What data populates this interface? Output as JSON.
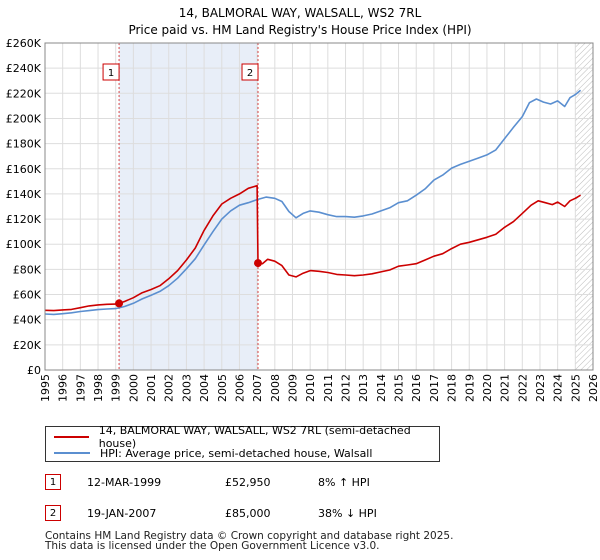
{
  "chart_data": {
    "type": "line",
    "title_line1": "14, BALMORAL WAY, WALSALL, WS2 7RL",
    "title_line2": "Price paid vs. HM Land Registry's House Price Index (HPI)",
    "x_ticks": [
      "1995",
      "1996",
      "1997",
      "1998",
      "1999",
      "2000",
      "2001",
      "2002",
      "2003",
      "2004",
      "2005",
      "2006",
      "2007",
      "2008",
      "2009",
      "2010",
      "2011",
      "2012",
      "2013",
      "2014",
      "2015",
      "2016",
      "2017",
      "2018",
      "2019",
      "2020",
      "2021",
      "2022",
      "2023",
      "2024",
      "2025",
      "2026"
    ],
    "y_ticks": [
      "£0",
      "£20K",
      "£40K",
      "£60K",
      "£80K",
      "£100K",
      "£120K",
      "£140K",
      "£160K",
      "£180K",
      "£200K",
      "£220K",
      "£240K",
      "£260K"
    ],
    "xlim": [
      1995,
      2026
    ],
    "ylim": [
      0,
      260000
    ],
    "colors": {
      "property": "#cc0000",
      "hpi": "#5b8fd0",
      "shade": "#e8eef8",
      "grid": "#dddddd"
    },
    "series": [
      {
        "name": "14, BALMORAL WAY, WALSALL, WS2 7RL (semi-detached house)",
        "points": [
          [
            1995.0,
            47500
          ],
          [
            1995.5,
            47200
          ],
          [
            1996.0,
            47800
          ],
          [
            1996.5,
            48200
          ],
          [
            1997.0,
            49500
          ],
          [
            1997.5,
            51000
          ],
          [
            1998.0,
            51800
          ],
          [
            1998.5,
            52200
          ],
          [
            1999.0,
            52400
          ],
          [
            1999.19,
            52950
          ],
          [
            1999.5,
            54500
          ],
          [
            2000.0,
            57500
          ],
          [
            2000.5,
            61500
          ],
          [
            2001.0,
            64000
          ],
          [
            2001.5,
            67000
          ],
          [
            2002.0,
            72500
          ],
          [
            2002.5,
            79000
          ],
          [
            2003.0,
            87500
          ],
          [
            2003.5,
            97000
          ],
          [
            2004.0,
            111000
          ],
          [
            2004.5,
            122500
          ],
          [
            2005.0,
            132000
          ],
          [
            2005.5,
            136500
          ],
          [
            2006.0,
            140000
          ],
          [
            2006.5,
            144500
          ],
          [
            2007.0,
            146500
          ],
          [
            2007.05,
            85000
          ],
          [
            2007.3,
            84500
          ],
          [
            2007.6,
            88000
          ],
          [
            2008.0,
            86500
          ],
          [
            2008.4,
            83000
          ],
          [
            2008.8,
            75500
          ],
          [
            2009.2,
            74000
          ],
          [
            2009.6,
            77000
          ],
          [
            2010.0,
            79000
          ],
          [
            2010.5,
            78500
          ],
          [
            2011.0,
            77500
          ],
          [
            2011.5,
            76000
          ],
          [
            2012.0,
            75500
          ],
          [
            2012.5,
            75000
          ],
          [
            2013.0,
            75500
          ],
          [
            2013.5,
            76500
          ],
          [
            2014.0,
            78000
          ],
          [
            2014.5,
            79500
          ],
          [
            2015.0,
            82500
          ],
          [
            2015.5,
            83500
          ],
          [
            2016.0,
            84500
          ],
          [
            2016.5,
            87500
          ],
          [
            2017.0,
            90500
          ],
          [
            2017.5,
            92500
          ],
          [
            2018.0,
            96500
          ],
          [
            2018.5,
            100000
          ],
          [
            2019.0,
            101500
          ],
          [
            2019.5,
            103500
          ],
          [
            2020.0,
            105500
          ],
          [
            2020.5,
            108000
          ],
          [
            2021.0,
            113500
          ],
          [
            2021.5,
            118000
          ],
          [
            2022.0,
            124500
          ],
          [
            2022.5,
            131000
          ],
          [
            2022.9,
            134500
          ],
          [
            2023.3,
            133000
          ],
          [
            2023.7,
            131500
          ],
          [
            2024.0,
            133500
          ],
          [
            2024.4,
            130000
          ],
          [
            2024.7,
            134500
          ],
          [
            2025.0,
            136500
          ],
          [
            2025.3,
            139000
          ]
        ]
      },
      {
        "name": "HPI: Average price, semi-detached house, Walsall",
        "points": [
          [
            1995.0,
            44500
          ],
          [
            1995.5,
            44200
          ],
          [
            1996.0,
            44800
          ],
          [
            1996.5,
            45500
          ],
          [
            1997.0,
            46500
          ],
          [
            1997.5,
            47200
          ],
          [
            1998.0,
            48000
          ],
          [
            1998.5,
            48500
          ],
          [
            1999.0,
            48800
          ],
          [
            1999.5,
            50500
          ],
          [
            2000.0,
            53000
          ],
          [
            2000.5,
            56500
          ],
          [
            2001.0,
            59500
          ],
          [
            2001.5,
            62500
          ],
          [
            2002.0,
            67000
          ],
          [
            2002.5,
            73000
          ],
          [
            2003.0,
            80500
          ],
          [
            2003.5,
            88500
          ],
          [
            2004.0,
            99500
          ],
          [
            2004.5,
            110000
          ],
          [
            2005.0,
            120000
          ],
          [
            2005.5,
            126500
          ],
          [
            2006.0,
            131000
          ],
          [
            2006.5,
            133000
          ],
          [
            2007.0,
            135500
          ],
          [
            2007.5,
            137500
          ],
          [
            2008.0,
            136500
          ],
          [
            2008.4,
            134000
          ],
          [
            2008.8,
            126000
          ],
          [
            2009.2,
            121000
          ],
          [
            2009.6,
            124500
          ],
          [
            2010.0,
            126500
          ],
          [
            2010.5,
            125500
          ],
          [
            2011.0,
            123500
          ],
          [
            2011.5,
            122000
          ],
          [
            2012.0,
            122000
          ],
          [
            2012.5,
            121500
          ],
          [
            2013.0,
            122500
          ],
          [
            2013.5,
            124000
          ],
          [
            2014.0,
            126500
          ],
          [
            2014.5,
            129000
          ],
          [
            2015.0,
            133000
          ],
          [
            2015.5,
            134500
          ],
          [
            2016.0,
            139000
          ],
          [
            2016.5,
            144000
          ],
          [
            2017.0,
            151000
          ],
          [
            2017.5,
            155000
          ],
          [
            2018.0,
            160500
          ],
          [
            2018.5,
            163500
          ],
          [
            2019.0,
            166000
          ],
          [
            2019.5,
            168500
          ],
          [
            2020.0,
            171000
          ],
          [
            2020.5,
            175000
          ],
          [
            2021.0,
            184000
          ],
          [
            2021.5,
            193000
          ],
          [
            2022.0,
            201500
          ],
          [
            2022.4,
            212500
          ],
          [
            2022.8,
            215500
          ],
          [
            2023.2,
            213000
          ],
          [
            2023.6,
            211500
          ],
          [
            2024.0,
            214000
          ],
          [
            2024.4,
            209500
          ],
          [
            2024.7,
            216500
          ],
          [
            2025.0,
            219000
          ],
          [
            2025.3,
            222500
          ]
        ]
      }
    ],
    "markers": [
      {
        "label": "1",
        "x": 1999.19,
        "y": 52950
      },
      {
        "label": "2",
        "x": 2007.05,
        "y": 85000
      }
    ],
    "shaded_range": [
      1999.19,
      2007.05
    ],
    "hatched_from": 2025.0
  },
  "legend": {
    "property_label": "14, BALMORAL WAY, WALSALL, WS2 7RL (semi-detached house)",
    "hpi_label": "HPI: Average price, semi-detached house, Walsall"
  },
  "transactions": [
    {
      "label": "1",
      "date": "12-MAR-1999",
      "price": "£52,950",
      "hpi": "8% ↑ HPI"
    },
    {
      "label": "2",
      "date": "19-JAN-2007",
      "price": "£85,000",
      "hpi": "38% ↓ HPI"
    }
  ],
  "footer": {
    "line1": "Contains HM Land Registry data © Crown copyright and database right 2025.",
    "line2": "This data is licensed under the Open Government Licence v3.0."
  }
}
